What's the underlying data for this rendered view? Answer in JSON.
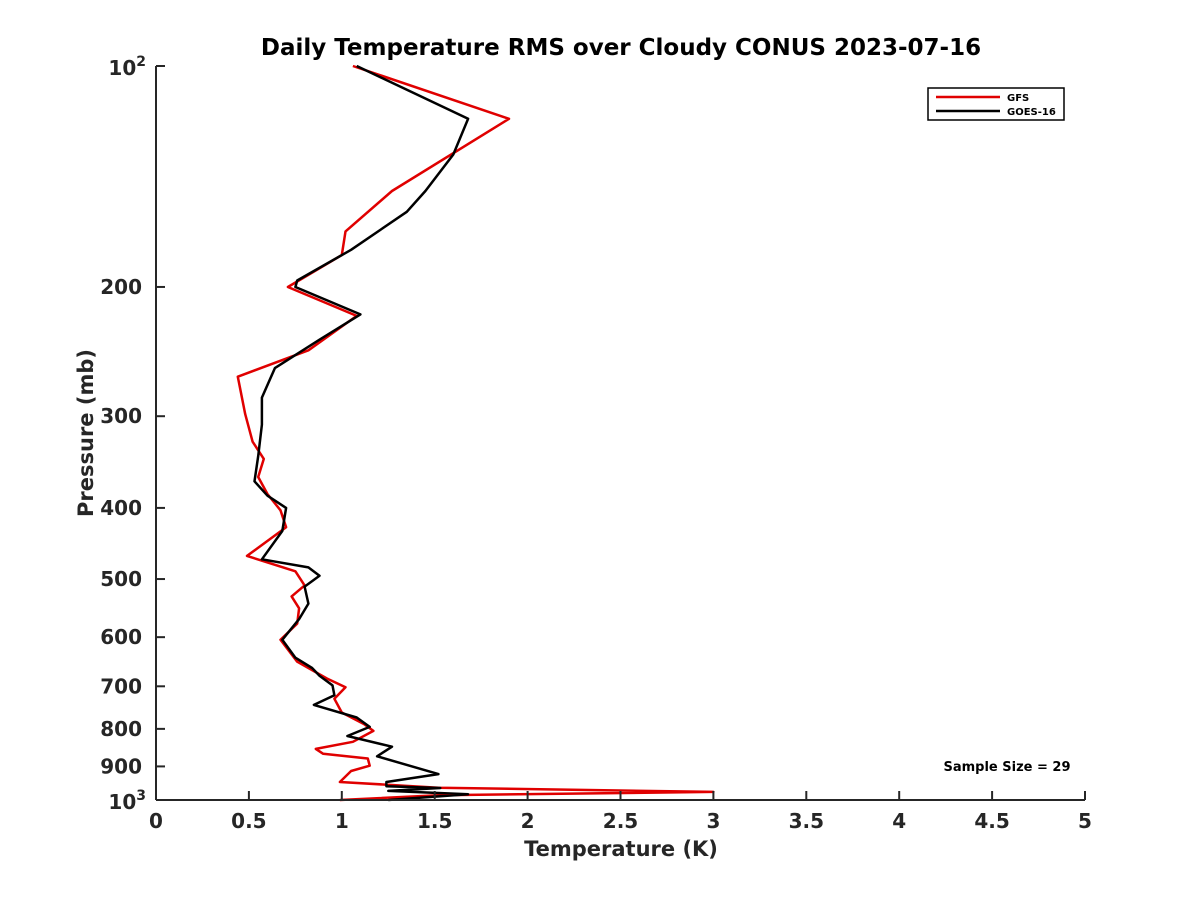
{
  "chart_data": {
    "type": "line",
    "title": "Daily Temperature RMS over Cloudy CONUS 2023-07-16",
    "xlabel": "Temperature (K)",
    "ylabel": "Pressure (mb)",
    "xlim": [
      0,
      5
    ],
    "ylim": [
      100,
      1000
    ],
    "y_scale": "log",
    "y_reversed": true,
    "grid": false,
    "legend_position": "top-right",
    "x_ticks": [
      "0",
      "0.5",
      "1",
      "1.5",
      "2",
      "2.5",
      "3",
      "3.5",
      "4",
      "4.5",
      "5"
    ],
    "y_ticks": [
      {
        "value": 100,
        "base": "10",
        "exp": "2"
      },
      {
        "value": 200,
        "label": "200"
      },
      {
        "value": 300,
        "label": "300"
      },
      {
        "value": 400,
        "label": "400"
      },
      {
        "value": 500,
        "label": "500"
      },
      {
        "value": 600,
        "label": "600"
      },
      {
        "value": 700,
        "label": "700"
      },
      {
        "value": 800,
        "label": "800"
      },
      {
        "value": 900,
        "label": "900"
      },
      {
        "value": 1000,
        "base": "10",
        "exp": "3"
      }
    ],
    "annotation": "Sample Size = 29",
    "series": [
      {
        "name": "GFS",
        "color": "#e00000",
        "points": [
          [
            1.06,
            100
          ],
          [
            1.9,
            118
          ],
          [
            1.27,
            148
          ],
          [
            1.02,
            168
          ],
          [
            1.0,
            181
          ],
          [
            0.71,
            200
          ],
          [
            1.08,
            219
          ],
          [
            0.82,
            244
          ],
          [
            0.44,
            265
          ],
          [
            0.48,
            298
          ],
          [
            0.52,
            325
          ],
          [
            0.58,
            343
          ],
          [
            0.55,
            363
          ],
          [
            0.6,
            383
          ],
          [
            0.67,
            403
          ],
          [
            0.7,
            425
          ],
          [
            0.49,
            465
          ],
          [
            0.75,
            488
          ],
          [
            0.8,
            510
          ],
          [
            0.73,
            528
          ],
          [
            0.77,
            548
          ],
          [
            0.76,
            575
          ],
          [
            0.67,
            605
          ],
          [
            0.76,
            648
          ],
          [
            0.92,
            683
          ],
          [
            1.02,
            702
          ],
          [
            0.96,
            728
          ],
          [
            1.0,
            760
          ],
          [
            1.12,
            788
          ],
          [
            1.17,
            805
          ],
          [
            1.06,
            833
          ],
          [
            0.86,
            852
          ],
          [
            0.9,
            865
          ],
          [
            1.14,
            878
          ],
          [
            1.15,
            898
          ],
          [
            1.05,
            913
          ],
          [
            0.99,
            945
          ],
          [
            1.52,
            962
          ],
          [
            3.0,
            975
          ],
          [
            1.52,
            985
          ],
          [
            0.99,
            1000
          ]
        ]
      },
      {
        "name": "GOES-16",
        "color": "#000000",
        "points": [
          [
            1.08,
            100
          ],
          [
            1.68,
            118
          ],
          [
            1.6,
            132
          ],
          [
            1.45,
            148
          ],
          [
            1.35,
            158
          ],
          [
            1.05,
            178
          ],
          [
            0.76,
            196
          ],
          [
            0.75,
            200
          ],
          [
            1.1,
            218
          ],
          [
            0.88,
            236
          ],
          [
            0.64,
            258
          ],
          [
            0.57,
            283
          ],
          [
            0.57,
            308
          ],
          [
            0.55,
            340
          ],
          [
            0.53,
            368
          ],
          [
            0.6,
            385
          ],
          [
            0.7,
            400
          ],
          [
            0.68,
            430
          ],
          [
            0.57,
            470
          ],
          [
            0.82,
            482
          ],
          [
            0.88,
            495
          ],
          [
            0.8,
            512
          ],
          [
            0.82,
            540
          ],
          [
            0.77,
            567
          ],
          [
            0.68,
            605
          ],
          [
            0.75,
            640
          ],
          [
            0.84,
            661
          ],
          [
            0.88,
            677
          ],
          [
            0.95,
            698
          ],
          [
            0.96,
            720
          ],
          [
            0.85,
            742
          ],
          [
            1.08,
            772
          ],
          [
            1.15,
            795
          ],
          [
            1.03,
            818
          ],
          [
            1.27,
            846
          ],
          [
            1.19,
            872
          ],
          [
            1.52,
            922
          ],
          [
            1.24,
            945
          ],
          [
            1.24,
            958
          ],
          [
            1.53,
            963
          ],
          [
            1.25,
            972
          ],
          [
            1.68,
            982
          ],
          [
            1.25,
            1000
          ]
        ]
      }
    ]
  }
}
